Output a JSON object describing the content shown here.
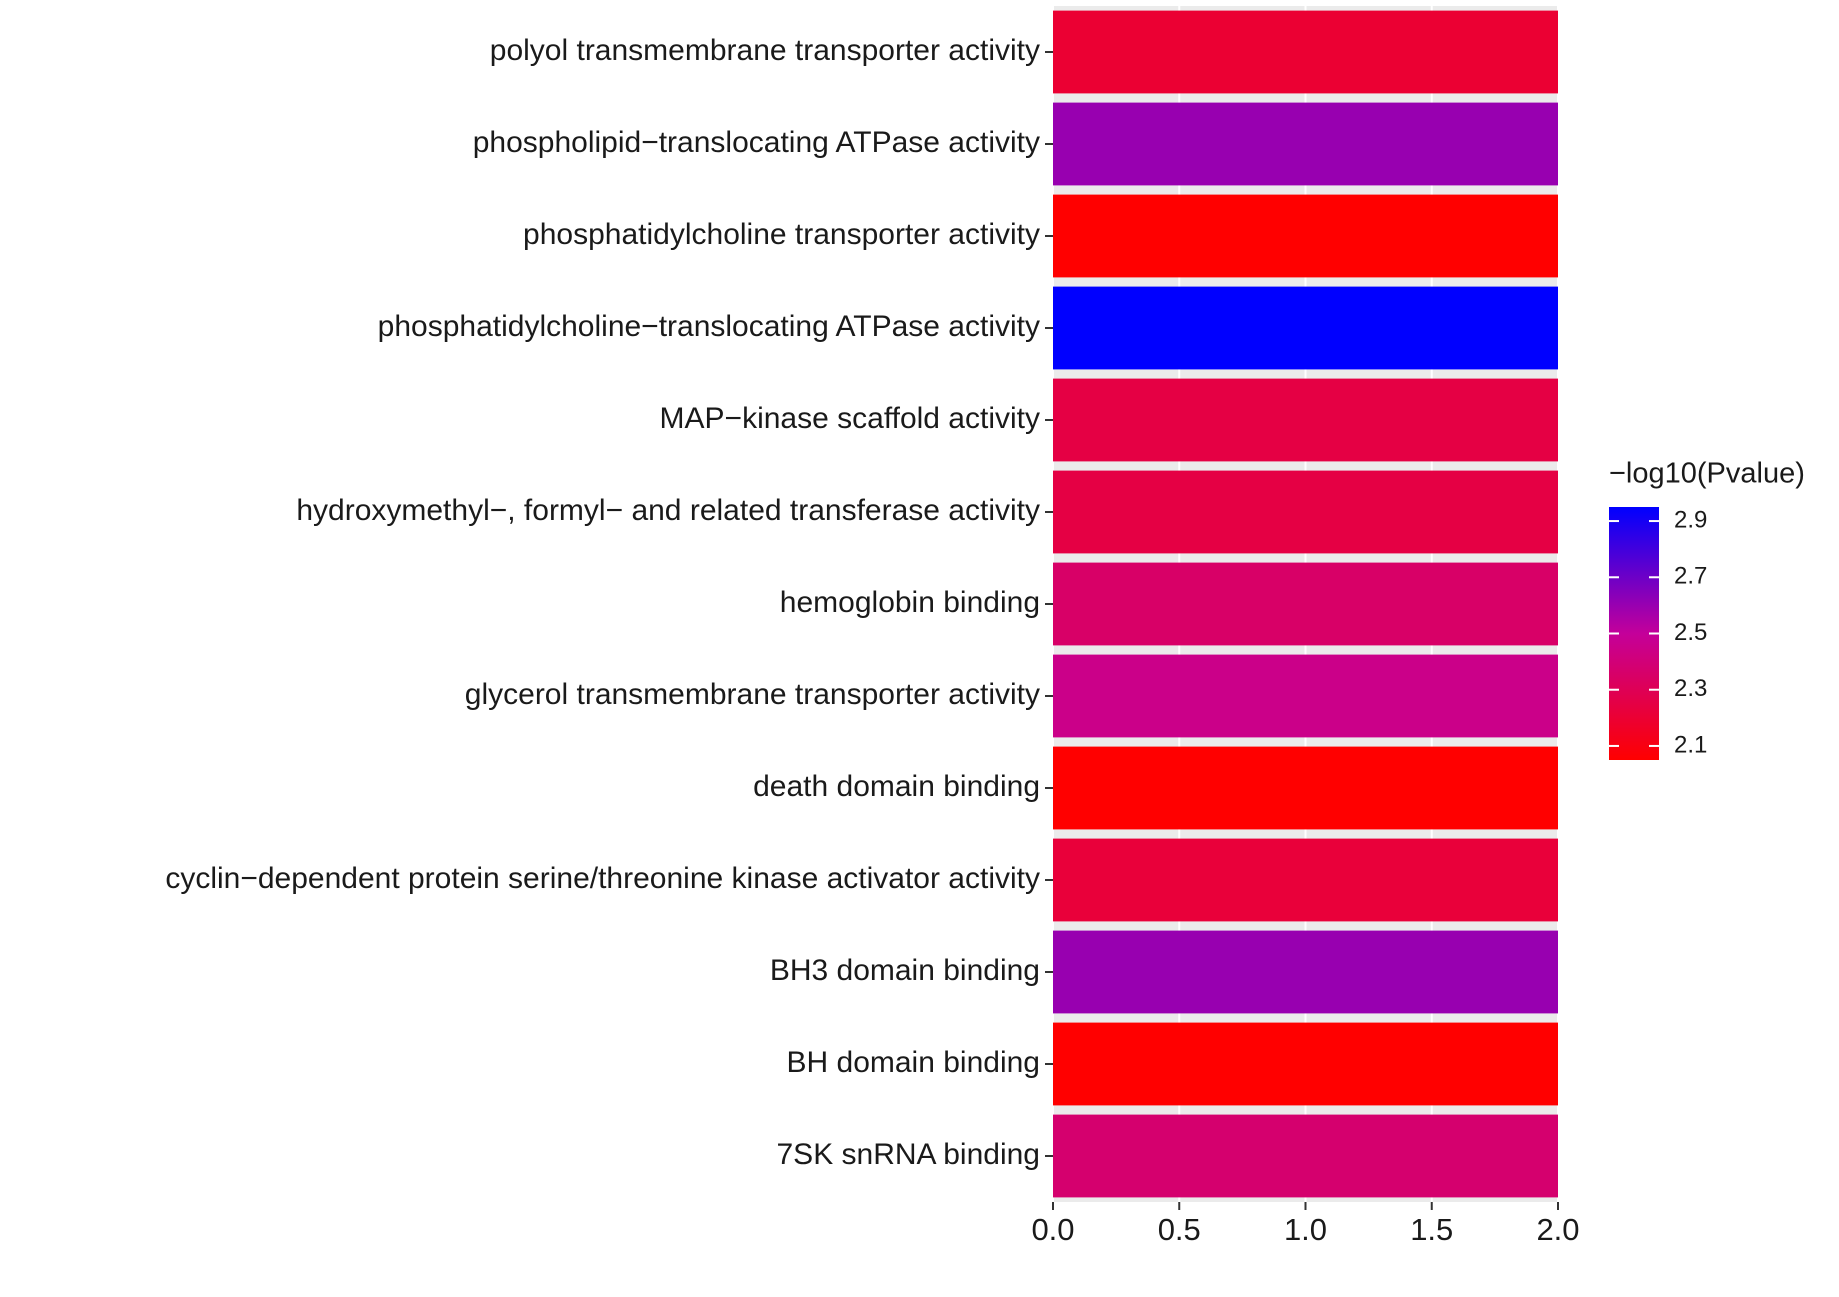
{
  "chart_data": {
    "type": "bar",
    "orientation": "horizontal",
    "categories": [
      "polyol transmembrane transporter activity",
      "phospholipid−translocating ATPase activity",
      "phosphatidylcholine transporter activity",
      "phosphatidylcholine−translocating ATPase activity",
      "MAP−kinase scaffold activity",
      "hydroxymethyl−, formyl− and related transferase activity",
      "hemoglobin binding",
      "glycerol transmembrane transporter activity",
      "death domain binding",
      "cyclin−dependent protein serine/threonine kinase activator activity",
      "BH3 domain binding",
      "BH domain binding",
      "7SK snRNA binding"
    ],
    "values": [
      2,
      2,
      2,
      2,
      2,
      2,
      2,
      2,
      2,
      2,
      2,
      2,
      2
    ],
    "color_values": [
      2.2,
      2.6,
      2.05,
      2.95,
      2.25,
      2.25,
      2.35,
      2.45,
      2.05,
      2.22,
      2.6,
      2.05,
      2.37
    ],
    "colorbar_title": "−log10(Pvalue)",
    "colorlim": [
      2.05,
      2.95
    ],
    "colorticks": [
      2.1,
      2.3,
      2.5,
      2.7,
      2.9
    ],
    "colors": [
      "#ff0000",
      "#c4009a",
      "#0000ff"
    ],
    "xlim": [
      0,
      2
    ],
    "xticks": [
      {
        "value": 0,
        "label": "0.0"
      },
      {
        "value": 0.5,
        "label": "0.5"
      },
      {
        "value": 1,
        "label": "1.0"
      },
      {
        "value": 1.5,
        "label": "1.5"
      },
      {
        "value": 2,
        "label": "2.0"
      }
    ],
    "grid": true
  }
}
